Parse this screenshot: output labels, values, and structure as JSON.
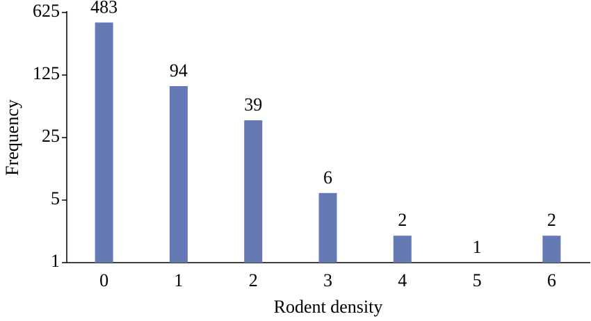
{
  "chart_data": {
    "type": "bar",
    "xlabel": "Rodent density",
    "ylabel": "Frequency",
    "categories": [
      "0",
      "1",
      "2",
      "3",
      "4",
      "5",
      "6"
    ],
    "values": [
      483,
      94,
      39,
      6,
      2,
      1,
      2
    ],
    "color": "#6579b5",
    "yscale": "log",
    "ylim": [
      1,
      625
    ],
    "yticks": [
      1,
      5,
      25,
      125,
      625
    ],
    "grid": false
  }
}
